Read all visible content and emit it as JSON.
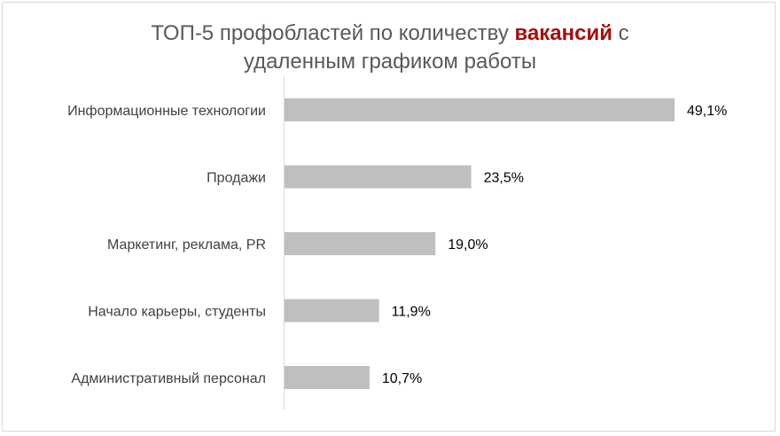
{
  "chart_data": {
    "type": "bar",
    "orientation": "horizontal",
    "title": {
      "line1_part1": "ТОП-5 профобластей по количеству ",
      "line1_highlight": "вакансий",
      "line1_part2": " с",
      "line2": "удаленным графиком работы"
    },
    "highlight_color": "#a40e0e",
    "bar_color": "#bfbfbf",
    "categories": [
      "Информационные технологии",
      "Продажи",
      "Маркетинг, реклама, PR",
      "Начало карьеры, студенты",
      "Административный персонал"
    ],
    "values": [
      49.1,
      23.5,
      19.0,
      11.9,
      10.7
    ],
    "value_labels": [
      "49,1%",
      "23,5%",
      "19,0%",
      "11,9%",
      "10,7%"
    ],
    "grid": false,
    "legend": "none"
  }
}
